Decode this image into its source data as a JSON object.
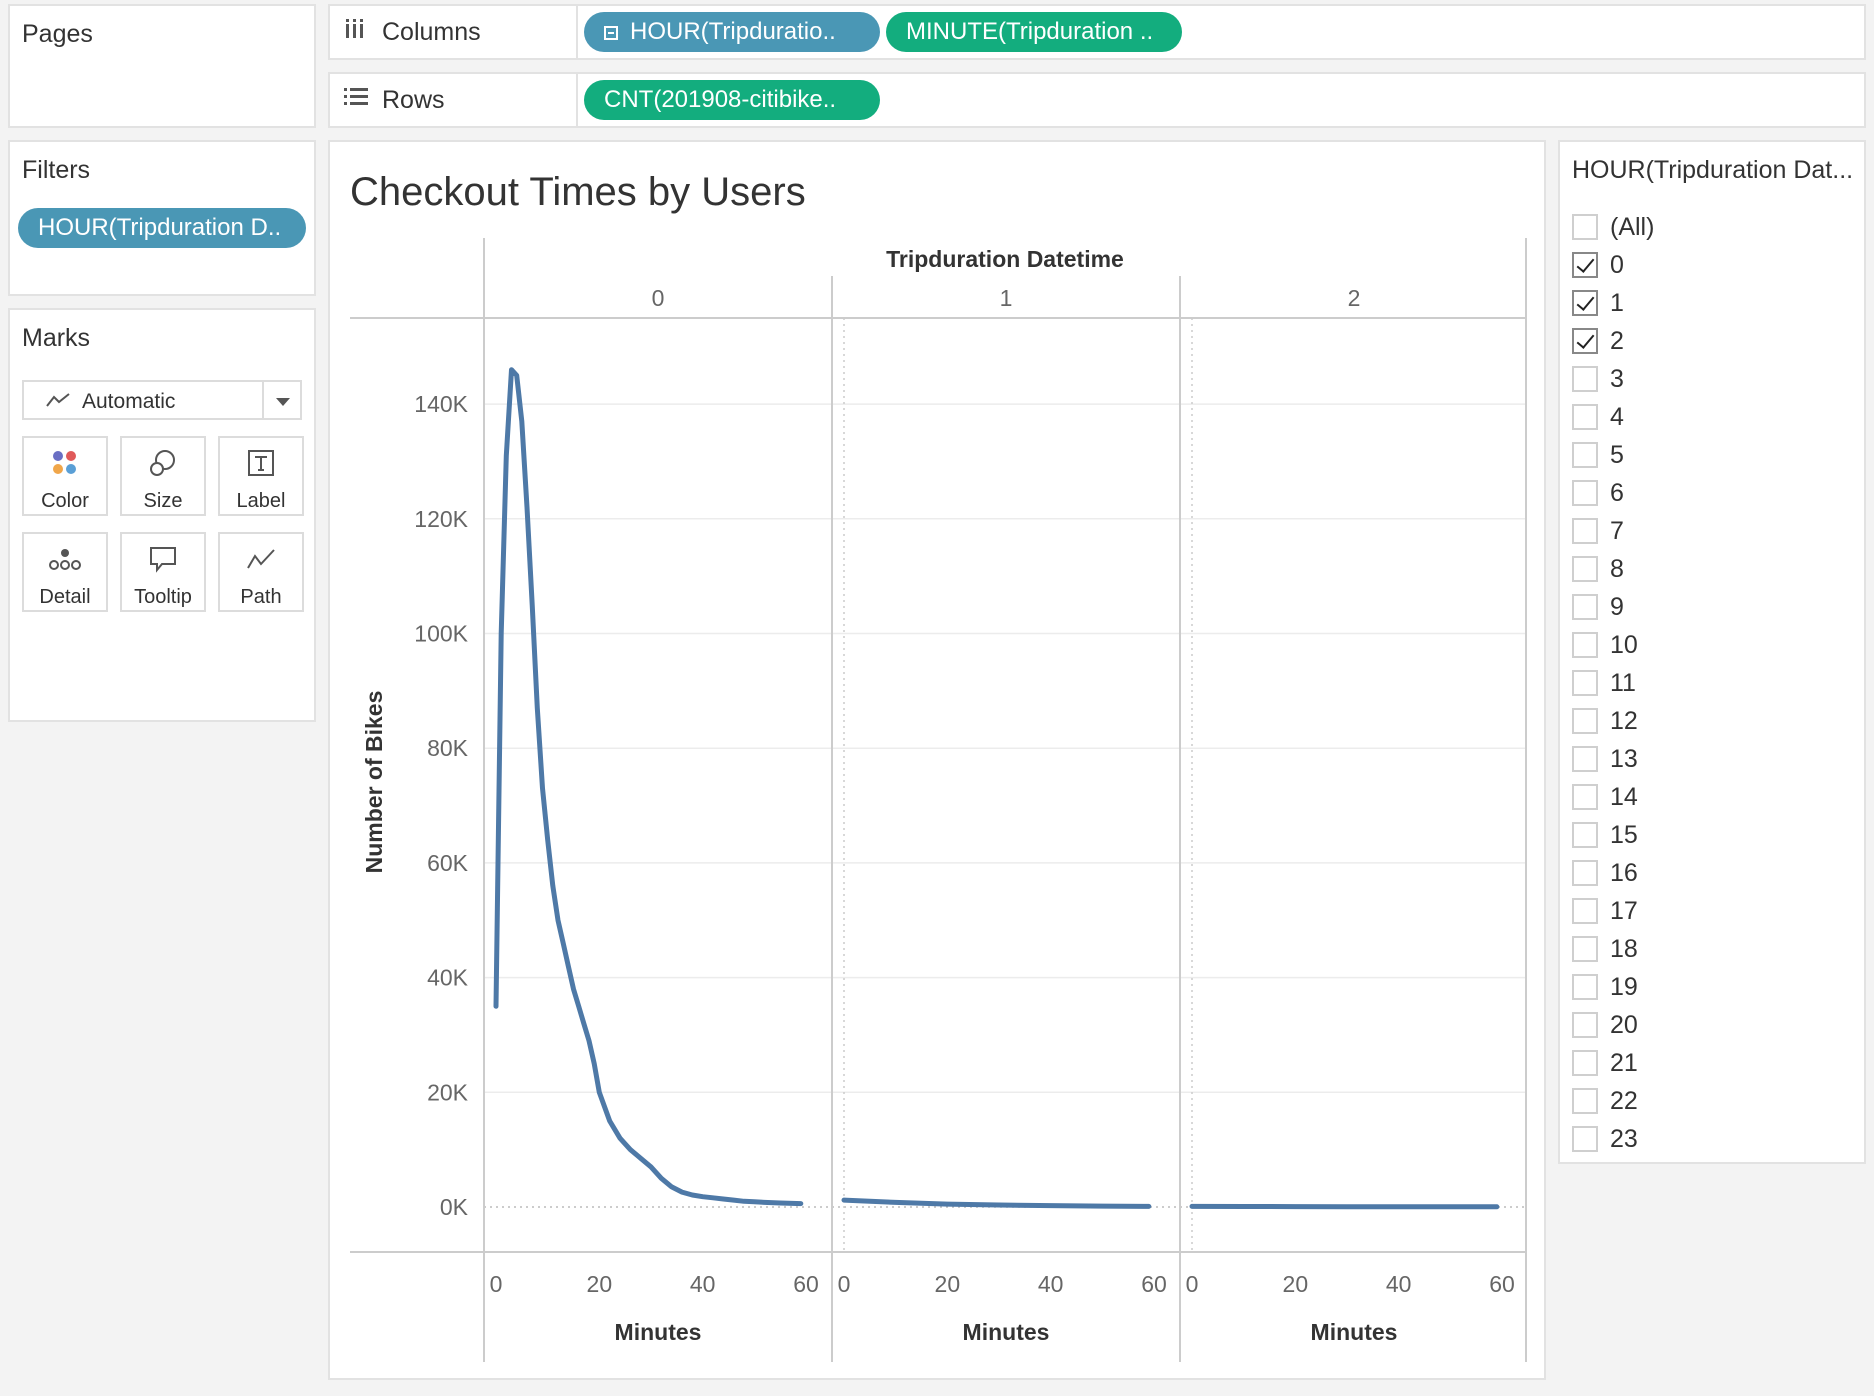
{
  "pages": {
    "title": "Pages"
  },
  "columns": {
    "label": "Columns",
    "icon": "columns-icon",
    "pills": [
      "HOUR(Tripduratio..",
      "MINUTE(Tripduration .."
    ]
  },
  "rows": {
    "label": "Rows",
    "icon": "rows-icon",
    "pills": [
      "CNT(201908-citibike.."
    ]
  },
  "filters": {
    "title": "Filters",
    "pill": "HOUR(Tripduration D.."
  },
  "marks": {
    "title": "Marks",
    "type": "Automatic",
    "buttons": [
      "Color",
      "Size",
      "Label",
      "Detail",
      "Tooltip",
      "Path"
    ]
  },
  "view": {
    "title": "Checkout Times by Users"
  },
  "chart_data": {
    "type": "line",
    "header": "Tripduration Datetime",
    "panes": [
      "0",
      "1",
      "2"
    ],
    "xlabel": "Minutes",
    "ylabel": "Number of Bikes",
    "x_ticks": [
      "0",
      "20",
      "40",
      "60"
    ],
    "y_ticks": [
      "0K",
      "20K",
      "40K",
      "60K",
      "80K",
      "100K",
      "120K",
      "140K"
    ],
    "xlim": [
      0,
      60
    ],
    "ylim": [
      0,
      160000
    ],
    "color": "#4e79a7",
    "series": [
      {
        "pane": "0",
        "x": [
          0,
          1,
          2,
          3,
          4,
          5,
          6,
          7,
          8,
          9,
          10,
          11,
          12,
          13,
          14,
          15,
          16,
          17,
          18,
          19,
          20,
          22,
          24,
          26,
          28,
          30,
          32,
          34,
          36,
          38,
          40,
          42,
          44,
          46,
          48,
          50,
          52,
          55,
          59
        ],
        "y": [
          35000,
          100000,
          131000,
          146000,
          145000,
          137000,
          122000,
          105000,
          87000,
          73000,
          64000,
          56000,
          50000,
          46000,
          42000,
          38000,
          35000,
          32000,
          29000,
          25000,
          20000,
          15000,
          12000,
          10000,
          8500,
          7000,
          5000,
          3500,
          2600,
          2100,
          1800,
          1600,
          1400,
          1200,
          1000,
          900,
          800,
          700,
          600
        ]
      },
      {
        "pane": "1",
        "x": [
          0,
          10,
          20,
          30,
          40,
          50,
          59
        ],
        "y": [
          1200,
          800,
          500,
          350,
          250,
          150,
          100
        ]
      },
      {
        "pane": "2",
        "x": [
          0,
          10,
          20,
          30,
          40,
          50,
          59
        ],
        "y": [
          100,
          80,
          70,
          60,
          50,
          40,
          30
        ]
      }
    ],
    "grid": true,
    "legend": "none"
  },
  "filter_card": {
    "title": "HOUR(Tripduration Dat...",
    "items": [
      {
        "label": "(All)",
        "checked": false
      },
      {
        "label": "0",
        "checked": true
      },
      {
        "label": "1",
        "checked": true
      },
      {
        "label": "2",
        "checked": true
      },
      {
        "label": "3",
        "checked": false
      },
      {
        "label": "4",
        "checked": false
      },
      {
        "label": "5",
        "checked": false
      },
      {
        "label": "6",
        "checked": false
      },
      {
        "label": "7",
        "checked": false
      },
      {
        "label": "8",
        "checked": false
      },
      {
        "label": "9",
        "checked": false
      },
      {
        "label": "10",
        "checked": false
      },
      {
        "label": "11",
        "checked": false
      },
      {
        "label": "12",
        "checked": false
      },
      {
        "label": "13",
        "checked": false
      },
      {
        "label": "14",
        "checked": false
      },
      {
        "label": "15",
        "checked": false
      },
      {
        "label": "16",
        "checked": false
      },
      {
        "label": "17",
        "checked": false
      },
      {
        "label": "18",
        "checked": false
      },
      {
        "label": "19",
        "checked": false
      },
      {
        "label": "20",
        "checked": false
      },
      {
        "label": "21",
        "checked": false
      },
      {
        "label": "22",
        "checked": false
      },
      {
        "label": "23",
        "checked": false
      }
    ]
  }
}
